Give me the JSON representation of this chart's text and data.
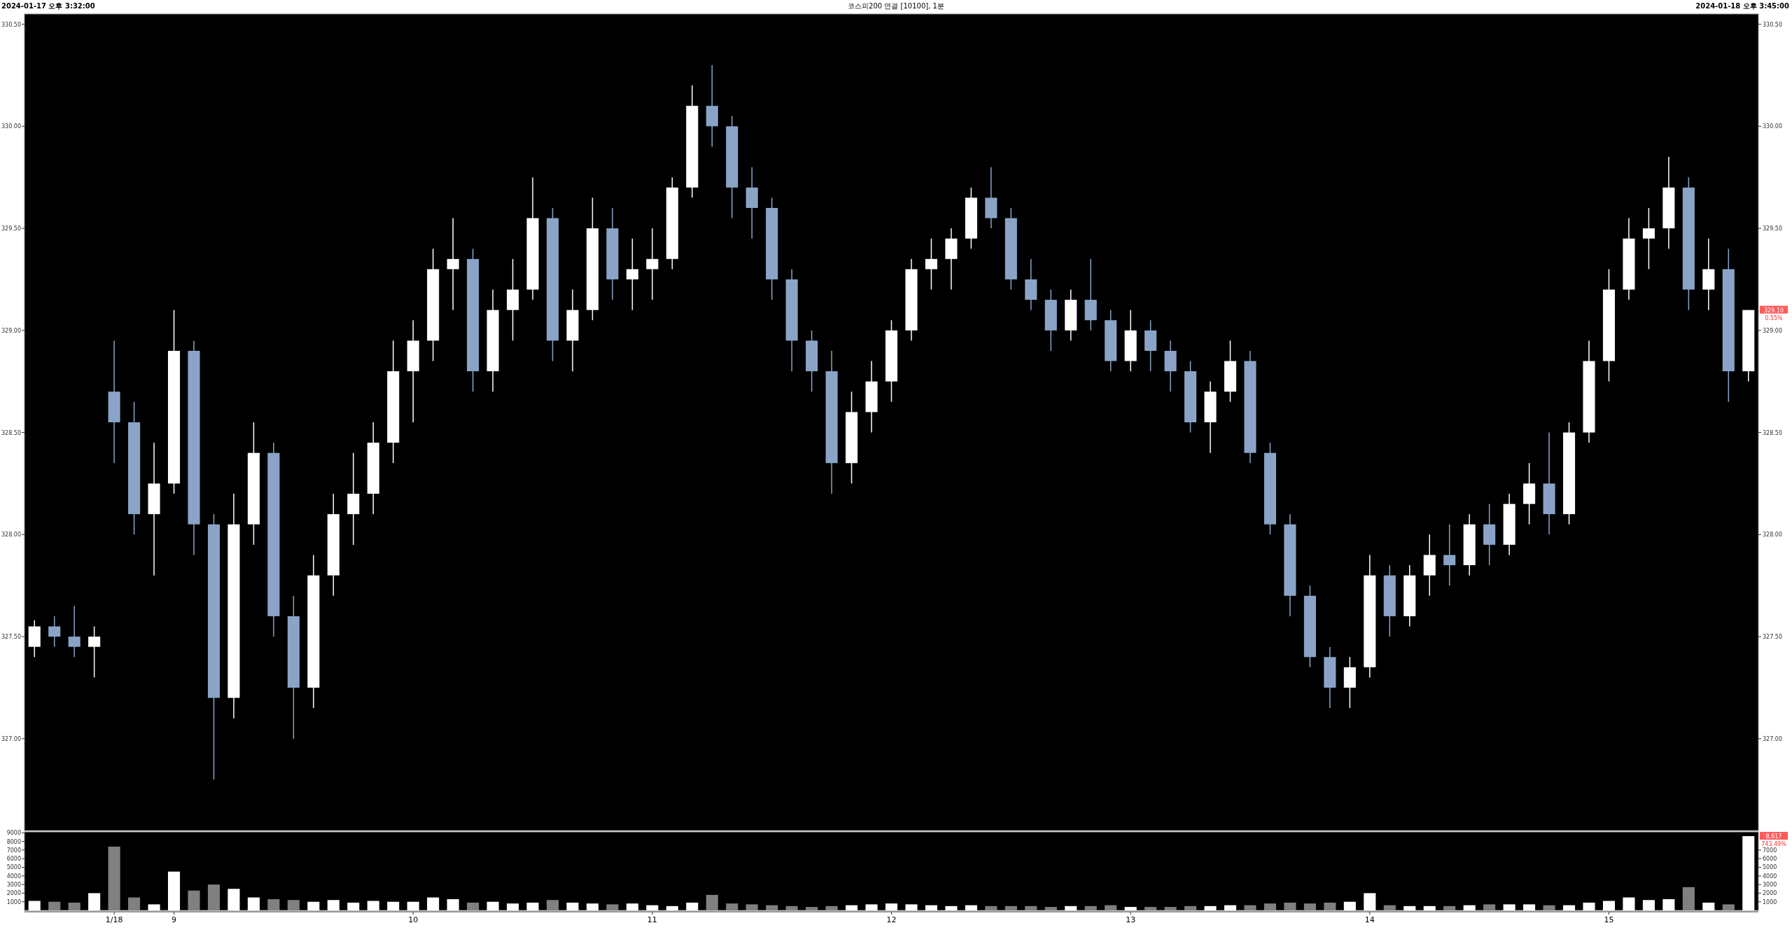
{
  "chart_data": [
    {
      "type": "candlestick",
      "title": "코스피200 연결 [10100], 1분",
      "annotations": [
        "2024-01-17 오후 3:32:00",
        "2024-01-18 오후 3:45:00",
        "329.10",
        "0.55%"
      ],
      "ohlc": [
        [
          327.45,
          327.58,
          327.4,
          327.55
        ],
        [
          327.55,
          327.6,
          327.45,
          327.5
        ],
        [
          327.5,
          327.65,
          327.4,
          327.45
        ],
        [
          327.45,
          327.55,
          327.3,
          327.5
        ],
        [
          328.7,
          328.95,
          328.35,
          328.55
        ],
        [
          328.55,
          328.65,
          328.0,
          328.1
        ],
        [
          328.1,
          328.45,
          327.8,
          328.25
        ],
        [
          328.25,
          329.1,
          328.2,
          328.9
        ],
        [
          328.9,
          328.95,
          327.9,
          328.05
        ],
        [
          328.05,
          328.1,
          326.8,
          327.2
        ],
        [
          327.2,
          328.2,
          327.1,
          328.05
        ],
        [
          328.05,
          328.55,
          327.95,
          328.4
        ],
        [
          328.4,
          328.45,
          327.5,
          327.6
        ],
        [
          327.6,
          327.7,
          327.0,
          327.25
        ],
        [
          327.25,
          327.9,
          327.15,
          327.8
        ],
        [
          327.8,
          328.2,
          327.7,
          328.1
        ],
        [
          328.1,
          328.4,
          327.95,
          328.2
        ],
        [
          328.2,
          328.55,
          328.1,
          328.45
        ],
        [
          328.45,
          328.95,
          328.35,
          328.8
        ],
        [
          328.8,
          329.05,
          328.55,
          328.95
        ],
        [
          328.95,
          329.4,
          328.85,
          329.3
        ],
        [
          329.3,
          329.55,
          329.1,
          329.35
        ],
        [
          329.35,
          329.4,
          328.7,
          328.8
        ],
        [
          328.8,
          329.2,
          328.7,
          329.1
        ],
        [
          329.1,
          329.35,
          328.95,
          329.2
        ],
        [
          329.2,
          329.75,
          329.15,
          329.55
        ],
        [
          329.55,
          329.6,
          328.85,
          328.95
        ],
        [
          328.95,
          329.2,
          328.8,
          329.1
        ],
        [
          329.1,
          329.65,
          329.05,
          329.5
        ],
        [
          329.5,
          329.6,
          329.15,
          329.25
        ],
        [
          329.25,
          329.45,
          329.1,
          329.3
        ],
        [
          329.3,
          329.5,
          329.15,
          329.35
        ],
        [
          329.35,
          329.75,
          329.3,
          329.7
        ],
        [
          329.7,
          330.2,
          329.65,
          330.1
        ],
        [
          330.1,
          330.3,
          329.9,
          330.0
        ],
        [
          330.0,
          330.05,
          329.55,
          329.7
        ],
        [
          329.7,
          329.8,
          329.45,
          329.6
        ],
        [
          329.6,
          329.65,
          329.15,
          329.25
        ],
        [
          329.25,
          329.3,
          328.8,
          328.95
        ],
        [
          328.95,
          329.0,
          328.7,
          328.8
        ],
        [
          328.8,
          328.9,
          328.2,
          328.35
        ],
        [
          328.35,
          328.7,
          328.25,
          328.6
        ],
        [
          328.6,
          328.85,
          328.5,
          328.75
        ],
        [
          328.75,
          329.05,
          328.65,
          329.0
        ],
        [
          329.0,
          329.35,
          328.95,
          329.3
        ],
        [
          329.3,
          329.45,
          329.2,
          329.35
        ],
        [
          329.35,
          329.5,
          329.2,
          329.45
        ],
        [
          329.45,
          329.7,
          329.4,
          329.65
        ],
        [
          329.65,
          329.8,
          329.5,
          329.55
        ],
        [
          329.55,
          329.6,
          329.2,
          329.25
        ],
        [
          329.25,
          329.35,
          329.1,
          329.15
        ],
        [
          329.15,
          329.2,
          328.9,
          329.0
        ],
        [
          329.0,
          329.2,
          328.95,
          329.15
        ],
        [
          329.15,
          329.35,
          329.0,
          329.05
        ],
        [
          329.05,
          329.1,
          328.8,
          328.85
        ],
        [
          328.85,
          329.1,
          328.8,
          329.0
        ],
        [
          329.0,
          329.05,
          328.8,
          328.9
        ],
        [
          328.9,
          328.95,
          328.7,
          328.8
        ],
        [
          328.8,
          328.85,
          328.5,
          328.55
        ],
        [
          328.55,
          328.75,
          328.4,
          328.7
        ],
        [
          328.7,
          328.95,
          328.65,
          328.85
        ],
        [
          328.85,
          328.9,
          328.35,
          328.4
        ],
        [
          328.4,
          328.45,
          328.0,
          328.05
        ],
        [
          328.05,
          328.1,
          327.6,
          327.7
        ],
        [
          327.7,
          327.75,
          327.35,
          327.4
        ],
        [
          327.4,
          327.45,
          327.15,
          327.25
        ],
        [
          327.25,
          327.4,
          327.15,
          327.35
        ],
        [
          327.35,
          327.9,
          327.3,
          327.8
        ],
        [
          327.8,
          327.85,
          327.5,
          327.6
        ],
        [
          327.6,
          327.85,
          327.55,
          327.8
        ],
        [
          327.8,
          328.0,
          327.7,
          327.9
        ],
        [
          327.9,
          328.05,
          327.75,
          327.85
        ],
        [
          327.85,
          328.1,
          327.8,
          328.05
        ],
        [
          328.05,
          328.15,
          327.85,
          327.95
        ],
        [
          327.95,
          328.2,
          327.9,
          328.15
        ],
        [
          328.15,
          328.35,
          328.05,
          328.25
        ],
        [
          328.25,
          328.5,
          328.0,
          328.1
        ],
        [
          328.1,
          328.55,
          328.05,
          328.5
        ],
        [
          328.5,
          328.95,
          328.45,
          328.85
        ],
        [
          328.85,
          329.3,
          328.75,
          329.2
        ],
        [
          329.2,
          329.55,
          329.15,
          329.45
        ],
        [
          329.45,
          329.6,
          329.3,
          329.5
        ],
        [
          329.5,
          329.85,
          329.4,
          329.7
        ],
        [
          329.7,
          329.75,
          329.1,
          329.2
        ],
        [
          329.2,
          329.45,
          329.1,
          329.3
        ],
        [
          329.3,
          329.4,
          328.65,
          328.8
        ],
        [
          328.8,
          329.1,
          328.75,
          329.1
        ]
      ],
      "colors": [
        "#ffffff",
        "#8aa4c8",
        "#8aa4c8",
        "#ffffff",
        "#8aa4c8",
        "#8aa4c8",
        "#ffffff",
        "#ffffff",
        "#8aa4c8",
        "#8aa4c8",
        "#ffffff",
        "#ffffff",
        "#8aa4c8",
        "#8aa4c8",
        "#ffffff",
        "#ffffff",
        "#ffffff",
        "#ffffff",
        "#ffffff",
        "#ffffff",
        "#ffffff",
        "#ffffff",
        "#8aa4c8",
        "#ffffff",
        "#ffffff",
        "#ffffff",
        "#8aa4c8",
        "#ffffff",
        "#ffffff",
        "#8aa4c8",
        "#ffffff",
        "#ffffff",
        "#ffffff",
        "#ffffff",
        "#8aa4c8",
        "#8aa4c8",
        "#8aa4c8",
        "#8aa4c8",
        "#8aa4c8",
        "#8aa4c8",
        "#8aa4c8",
        "#ffffff",
        "#ffffff",
        "#ffffff",
        "#ffffff",
        "#ffffff",
        "#ffffff",
        "#ffffff",
        "#8aa4c8",
        "#8aa4c8",
        "#8aa4c8",
        "#8aa4c8",
        "#ffffff",
        "#8aa4c8",
        "#8aa4c8",
        "#ffffff",
        "#8aa4c8",
        "#8aa4c8",
        "#8aa4c8",
        "#ffffff",
        "#ffffff",
        "#8aa4c8",
        "#8aa4c8",
        "#8aa4c8",
        "#8aa4c8",
        "#8aa4c8",
        "#ffffff",
        "#ffffff",
        "#8aa4c8",
        "#ffffff",
        "#ffffff",
        "#8aa4c8",
        "#ffffff",
        "#8aa4c8",
        "#ffffff",
        "#ffffff",
        "#8aa4c8",
        "#ffffff",
        "#ffffff",
        "#ffffff",
        "#ffffff",
        "#ffffff",
        "#ffffff",
        "#8aa4c8",
        "#ffffff",
        "#8aa4c8",
        "#ffffff"
      ],
      "ylim": [
        326.55,
        330.55
      ],
      "yticks": [
        {
          "value": 327,
          "label": "327.00"
        },
        {
          "value": 327.5,
          "label": "327.50"
        },
        {
          "value": 328,
          "label": "328.00"
        },
        {
          "value": 328.5,
          "label": "328.50"
        },
        {
          "value": 329,
          "label": "329.00"
        },
        {
          "value": 329.5,
          "label": "329.50"
        },
        {
          "value": 330,
          "label": "330.00"
        },
        {
          "value": 330.5,
          "label": "330.50"
        }
      ],
      "y2lim": [
        326.55,
        330.55
      ],
      "y2ticks": [
        {
          "value": 327,
          "label": "327.00"
        },
        {
          "value": 327.5,
          "label": "327.50"
        },
        {
          "value": 328,
          "label": "328.00"
        },
        {
          "value": 328.5,
          "label": "328.50"
        },
        {
          "value": 329,
          "label": "329.00"
        },
        {
          "value": 329.5,
          "label": "329.50"
        },
        {
          "value": 330,
          "label": "330.00"
        },
        {
          "value": 330.5,
          "label": "330.50"
        }
      ],
      "tick_labels": "y"
    },
    {
      "type": "bar",
      "annotations": [
        "8,617",
        "743.49%"
      ],
      "categories": [
        null,
        null,
        null,
        null,
        "1/18",
        null,
        null,
        "9",
        null,
        null,
        null,
        null,
        null,
        null,
        null,
        null,
        null,
        null,
        null,
        "10",
        null,
        null,
        null,
        null,
        null,
        null,
        null,
        null,
        null,
        null,
        null,
        "11",
        null,
        null,
        null,
        null,
        null,
        null,
        null,
        null,
        null,
        null,
        null,
        "12",
        null,
        null,
        null,
        null,
        null,
        null,
        null,
        null,
        null,
        null,
        null,
        "13",
        null,
        null,
        null,
        null,
        null,
        null,
        null,
        null,
        null,
        null,
        null,
        "14",
        null,
        null,
        null,
        null,
        null,
        null,
        null,
        null,
        null,
        null,
        null,
        "15",
        null,
        null,
        null,
        null,
        null,
        null,
        null
      ],
      "values": [
        1100,
        1000,
        900,
        2000,
        7400,
        1500,
        700,
        4500,
        2300,
        3000,
        2500,
        1500,
        1300,
        1200,
        1000,
        1200,
        900,
        1100,
        1000,
        1000,
        1500,
        1300,
        900,
        1000,
        800,
        900,
        1200,
        900,
        800,
        700,
        800,
        600,
        500,
        900,
        1800,
        800,
        700,
        600,
        500,
        400,
        500,
        600,
        700,
        800,
        700,
        600,
        500,
        600,
        500,
        500,
        500,
        400,
        500,
        500,
        600,
        400,
        400,
        400,
        500,
        500,
        600,
        600,
        800,
        900,
        800,
        900,
        1000,
        2000,
        600,
        500,
        500,
        500,
        600,
        700,
        700,
        700,
        600,
        600,
        900,
        1100,
        1500,
        1200,
        1300,
        2700,
        900,
        700,
        8617
      ],
      "colors": [
        "#ffffff",
        "#808080",
        "#808080",
        "#ffffff",
        "#808080",
        "#808080",
        "#ffffff",
        "#ffffff",
        "#808080",
        "#808080",
        "#ffffff",
        "#ffffff",
        "#808080",
        "#808080",
        "#ffffff",
        "#ffffff",
        "#ffffff",
        "#ffffff",
        "#ffffff",
        "#ffffff",
        "#ffffff",
        "#ffffff",
        "#808080",
        "#ffffff",
        "#ffffff",
        "#ffffff",
        "#808080",
        "#ffffff",
        "#ffffff",
        "#808080",
        "#ffffff",
        "#ffffff",
        "#ffffff",
        "#ffffff",
        "#808080",
        "#808080",
        "#808080",
        "#808080",
        "#808080",
        "#808080",
        "#808080",
        "#ffffff",
        "#ffffff",
        "#ffffff",
        "#ffffff",
        "#ffffff",
        "#ffffff",
        "#ffffff",
        "#808080",
        "#808080",
        "#808080",
        "#808080",
        "#ffffff",
        "#808080",
        "#808080",
        "#ffffff",
        "#808080",
        "#808080",
        "#808080",
        "#ffffff",
        "#ffffff",
        "#808080",
        "#808080",
        "#808080",
        "#808080",
        "#808080",
        "#ffffff",
        "#ffffff",
        "#808080",
        "#ffffff",
        "#ffffff",
        "#808080",
        "#ffffff",
        "#808080",
        "#ffffff",
        "#ffffff",
        "#808080",
        "#ffffff",
        "#ffffff",
        "#ffffff",
        "#ffffff",
        "#ffffff",
        "#ffffff",
        "#808080",
        "#ffffff",
        "#808080",
        "#ffffff"
      ],
      "ylim": [
        0,
        9100
      ],
      "yticks": [
        1000,
        2000,
        3000,
        4000,
        5000,
        6000,
        7000,
        8000,
        9000
      ],
      "y2lim": [
        0,
        9100
      ],
      "y2ticks": [
        1000,
        2000,
        3000,
        4000,
        5000,
        6000,
        7000
      ]
    }
  ]
}
